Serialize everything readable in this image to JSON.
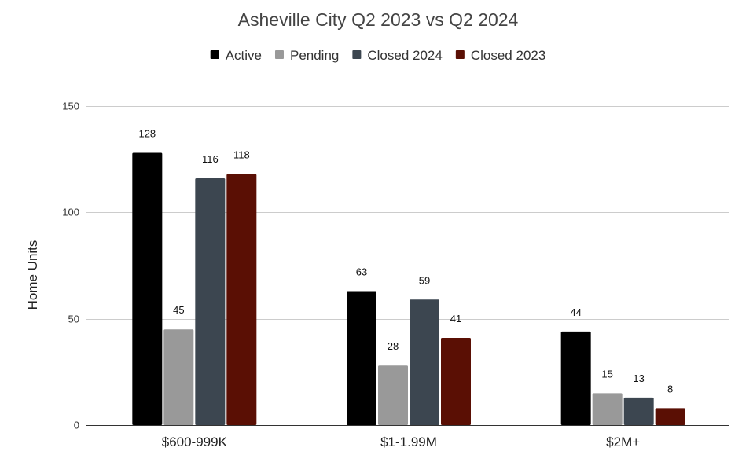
{
  "chart_data": {
    "type": "bar",
    "title": "Asheville City Q2 2023 vs Q2 2024",
    "xlabel": "",
    "ylabel": "Home Units",
    "ylim": [
      0,
      150
    ],
    "yticks": [
      0,
      50,
      100,
      150
    ],
    "grid": true,
    "legend_position": "top",
    "categories": [
      "$600-999K",
      "$1-1.99M",
      "$2M+"
    ],
    "series": [
      {
        "name": "Active",
        "color": "#000000",
        "values": [
          128,
          63,
          44
        ]
      },
      {
        "name": "Pending",
        "color": "#999999",
        "values": [
          45,
          28,
          15
        ]
      },
      {
        "name": "Closed 2024",
        "color": "#3c4650",
        "values": [
          116,
          59,
          13
        ]
      },
      {
        "name": "Closed 2023",
        "color": "#5a0f04",
        "values": [
          118,
          41,
          8
        ]
      }
    ]
  }
}
